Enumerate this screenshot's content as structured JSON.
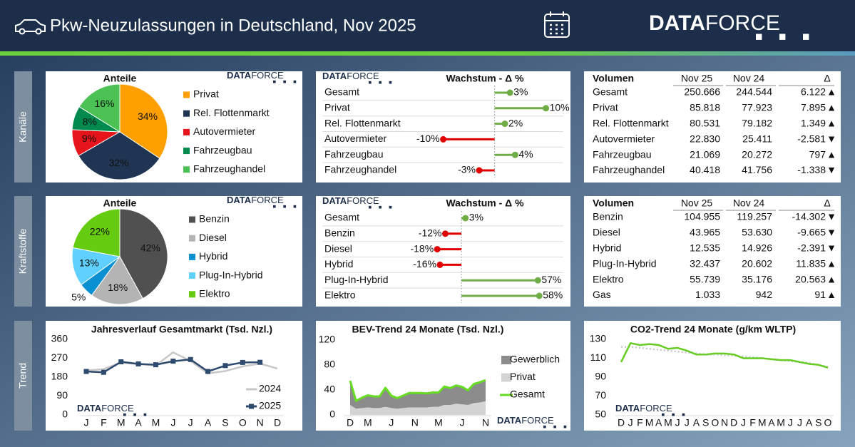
{
  "header": {
    "title": "Pkw-Neuzulassungen in Deutschland, Nov 2025"
  },
  "logo": [
    "DATA",
    "FORCE"
  ],
  "sections": [
    "Kanäle",
    "Kraftstoffe",
    "Trend"
  ],
  "chart_data": [
    {
      "type": "pie",
      "title": "Anteile",
      "categories": [
        "Privat",
        "Rel. Flottenmarkt",
        "Autovermieter",
        "Fahrzeugbau",
        "Fahrzeughandel"
      ],
      "values": [
        34,
        32,
        9,
        8,
        16
      ],
      "value_labels": [
        "34%",
        "32%",
        "9%",
        "8%",
        "16%"
      ],
      "colors": [
        "#ffa000",
        "#203454",
        "#e8141c",
        "#008a4e",
        "#4cc254"
      ]
    },
    {
      "type": "lollipop",
      "title": "Wachstum - Δ %",
      "categories": [
        "Gesamt",
        "Privat",
        "Rel. Flottenmarkt",
        "Autovermieter",
        "Fahrzeugbau",
        "Fahrzeughandel"
      ],
      "values": [
        3,
        10,
        2,
        -10,
        4,
        -3
      ],
      "value_labels": [
        "3%",
        "10%",
        "2%",
        "-10%",
        "4%",
        "-3%"
      ],
      "xlim": [
        -13,
        12
      ],
      "colors": {
        "positive": "#70ad47",
        "negative": "#e00000"
      }
    },
    {
      "type": "pie",
      "title": "Anteile",
      "categories": [
        "Benzin",
        "Diesel",
        "Hybrid",
        "Plug-In-Hybrid",
        "Elektro"
      ],
      "values": [
        42,
        18,
        5,
        13,
        22
      ],
      "value_labels": [
        "42%",
        "18%",
        "5%",
        "13%",
        "22%"
      ],
      "colors": [
        "#505050",
        "#b4b4b4",
        "#0a8fd0",
        "#5fd0ff",
        "#66cc11"
      ]
    },
    {
      "type": "lollipop",
      "title": "Wachstum - Δ %",
      "categories": [
        "Gesamt",
        "Benzin",
        "Diesel",
        "Hybrid",
        "Plug-In-Hybrid",
        "Elektro"
      ],
      "values": [
        3,
        -12,
        -18,
        -16,
        57,
        58
      ],
      "value_labels": [
        "3%",
        "-12%",
        "-18%",
        "-16%",
        "57%",
        "58%"
      ],
      "xlim": [
        -25,
        60
      ],
      "colors": {
        "positive": "#70ad47",
        "negative": "#e00000"
      }
    },
    {
      "type": "line",
      "title": "Jahresverlauf Gesamtmarkt (Tsd. Nzl.)",
      "categories": [
        "J",
        "F",
        "M",
        "A",
        "M",
        "J",
        "J",
        "A",
        "S",
        "O",
        "N",
        "D"
      ],
      "series": [
        {
          "name": "2024",
          "color": "#c8c8c8",
          "values": [
            212,
            218,
            250,
            242,
            236,
            298,
            257,
            198,
            209,
            231,
            244.5,
            221
          ]
        },
        {
          "name": "2025",
          "color": "#2e4a6e",
          "marker": "square",
          "values": [
            207,
            203,
            253,
            243,
            239,
            256,
            264,
            207,
            235,
            250,
            250.7,
            null
          ]
        }
      ],
      "ylim": [
        0,
        360
      ],
      "yticks": [
        0,
        90,
        180,
        270,
        360
      ],
      "legend": "lower right"
    },
    {
      "type": "area",
      "title": "BEV-Trend 24 Monate (Tsd. Nzl.)",
      "categories": [
        "D",
        null,
        null,
        "M",
        null,
        null,
        null,
        "J",
        null,
        null,
        null,
        "N",
        null,
        null,
        null,
        "M",
        null,
        null,
        null,
        "J",
        null,
        null,
        null,
        "N"
      ],
      "series": [
        {
          "name": "Gewerblich",
          "color": "#8c8c8c",
          "kind": "area",
          "values": [
            38.7,
            12.5,
            16.5,
            19.4,
            18.7,
            18.7,
            30.4,
            19.8,
            17.0,
            20.0,
            23.2,
            23.2,
            23.2,
            22.5,
            23.0,
            22.9,
            29.5,
            27.1,
            29.2,
            28.1,
            23.4,
            30.6,
            32.4,
            33.7
          ]
        },
        {
          "name": "Privat",
          "color": "#d4d4d4",
          "kind": "area",
          "values": [
            16,
            10,
            11,
            12,
            11,
            11,
            13,
            11,
            10,
            11,
            12,
            12,
            12,
            12,
            13,
            13,
            16,
            16,
            18,
            17,
            16,
            19,
            20,
            22
          ]
        },
        {
          "name": "Gesamt",
          "color": "#66dd22",
          "kind": "line",
          "values": [
            54.7,
            22.5,
            27.5,
            31.4,
            29.7,
            29.7,
            43.4,
            30.8,
            27.0,
            31.0,
            35.2,
            35.2,
            35.2,
            34.5,
            36.0,
            35.9,
            45.5,
            43.1,
            47.2,
            45.1,
            39.4,
            49.6,
            52.4,
            55.7
          ]
        }
      ],
      "ylim": [
        0,
        120
      ],
      "yticks": [
        0,
        40,
        80,
        120
      ],
      "legend": "right"
    },
    {
      "type": "line",
      "title": "CO2-Trend 24 Monate (g/km WLTP)",
      "categories": [
        "D",
        "J",
        "F",
        "M",
        "A",
        "M",
        "J",
        "J",
        "A",
        "S",
        "O",
        "N",
        "D",
        "J",
        "F",
        "M",
        "A",
        "M",
        "J",
        "J",
        "A",
        "S",
        "O"
      ],
      "series": [
        {
          "color": "#c8c8c8",
          "dash": true,
          "values": [
            122,
            122,
            121,
            120,
            119,
            118,
            117,
            116,
            115,
            114,
            114,
            113,
            113,
            112,
            111,
            110,
            109,
            108,
            107,
            106,
            105,
            103,
            101
          ]
        },
        {
          "color": "#66cc22",
          "values": [
            106,
            126,
            124,
            125,
            124,
            120,
            121,
            118,
            114,
            114,
            115,
            115,
            114,
            110,
            110,
            110,
            109,
            108,
            108,
            106,
            104,
            103,
            100
          ]
        }
      ],
      "ylim": [
        50,
        130
      ],
      "yticks": [
        50,
        70,
        90,
        110,
        130
      ]
    }
  ],
  "tables": [
    {
      "columns": [
        "Volumen",
        "Nov 25",
        "Nov 24",
        "Δ"
      ],
      "rows": [
        [
          "Gesamt",
          "250.666",
          "244.544",
          "6.122"
        ],
        [
          "Privat",
          "85.818",
          "77.923",
          "7.895"
        ],
        [
          "Rel. Flottenmarkt",
          "80.531",
          "79.182",
          "1.349"
        ],
        [
          "Autovermieter",
          "22.830",
          "25.411",
          "-2.581"
        ],
        [
          "Fahrzeugbau",
          "21.069",
          "20.272",
          "797"
        ],
        [
          "Fahrzeughandel",
          "40.418",
          "41.756",
          "-1.338"
        ]
      ]
    },
    {
      "columns": [
        "Volumen",
        "Nov 25",
        "Nov 24",
        "Δ"
      ],
      "rows": [
        [
          "Benzin",
          "104.955",
          "119.257",
          "-14.302"
        ],
        [
          "Diesel",
          "43.965",
          "53.630",
          "-9.665"
        ],
        [
          "Hybrid",
          "12.535",
          "14.926",
          "-2.391"
        ],
        [
          "Plug-In-Hybrid",
          "32.437",
          "20.602",
          "11.835"
        ],
        [
          "Elektro",
          "55.739",
          "35.176",
          "20.563"
        ],
        [
          "Gas",
          "1.033",
          "942",
          "91"
        ]
      ]
    }
  ]
}
